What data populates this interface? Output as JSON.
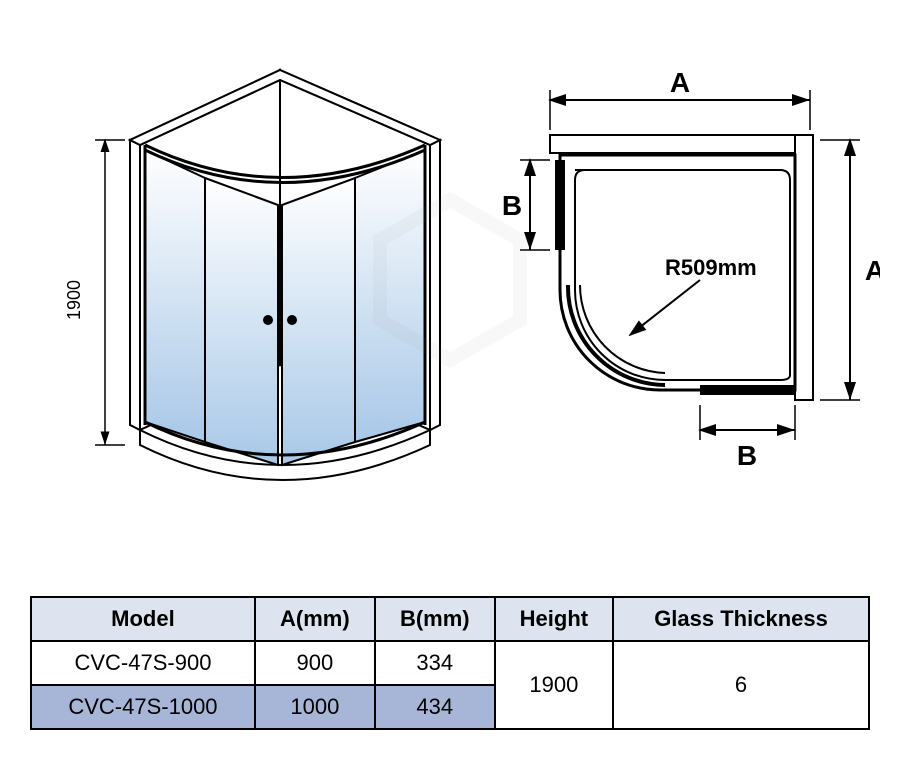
{
  "diagram": {
    "iso_view": {
      "height_label": "1900",
      "line_color": "#000000",
      "line_width": 2,
      "glass_gradient_top": "#ffffff",
      "glass_gradient_bottom": "#a8c8e8",
      "frame_color": "#000000"
    },
    "top_view": {
      "label_A": "A",
      "label_B": "B",
      "radius_label": "R509mm",
      "line_color": "#000000",
      "line_width": 2,
      "fill_color": "#ffffff"
    },
    "dimension_font_size": 28,
    "dimension_font_size_sm": 22,
    "arrow_size": 10
  },
  "table": {
    "columns": [
      "Model",
      "A(mm)",
      "B(mm)",
      "Height",
      "Glass Thickness"
    ],
    "header_bg": "#dde4f0",
    "highlight_bg": "#a7b5d6",
    "border_color": "#000000",
    "rows": [
      {
        "cells": [
          "CVC-47S-900",
          "900",
          "334"
        ],
        "highlight": false
      },
      {
        "cells": [
          "CVC-47S-1000",
          "1000",
          "434"
        ],
        "highlight": true
      }
    ],
    "merged_height": "1900",
    "merged_glass": "6"
  }
}
